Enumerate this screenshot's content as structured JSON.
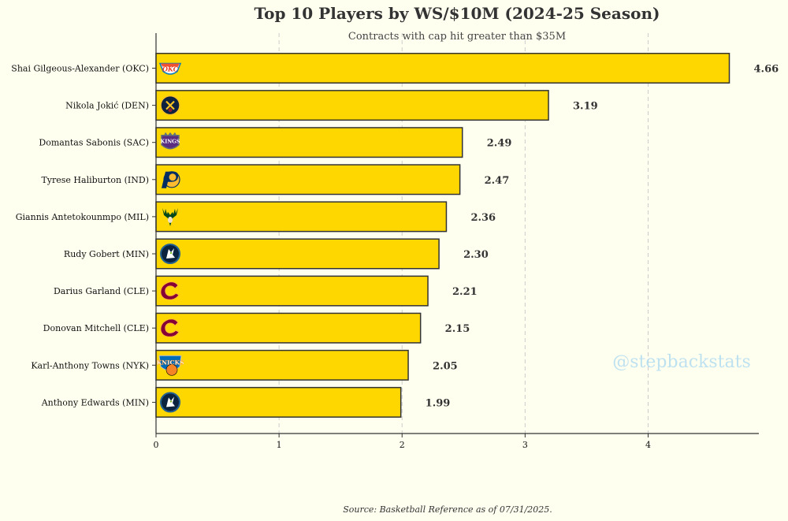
{
  "chart_data": {
    "type": "bar",
    "orientation": "horizontal",
    "title": "Top 10 Players by WS/$10M (2024-25 Season)",
    "subtitle": "Contracts with cap hit greater than $35M",
    "categories": [
      "Shai Gilgeous-Alexander (OKC)",
      "Nikola Jokić (DEN)",
      "Domantas Sabonis (SAC)",
      "Tyrese Haliburton (IND)",
      "Giannis Antetokounmpo (MIL)",
      "Rudy Gobert (MIN)",
      "Darius Garland (CLE)",
      "Donovan Mitchell (CLE)",
      "Karl-Anthony Towns (NYK)",
      "Anthony Edwards (MIN)"
    ],
    "values": [
      4.66,
      3.19,
      2.49,
      2.47,
      2.36,
      2.3,
      2.21,
      2.15,
      2.05,
      1.99
    ],
    "value_labels": [
      "4.66",
      "3.19",
      "2.49",
      "2.47",
      "2.36",
      "2.30",
      "2.21",
      "2.15",
      "2.05",
      "1.99"
    ],
    "teams": [
      "OKC",
      "DEN",
      "SAC",
      "IND",
      "MIL",
      "MIN",
      "CLE",
      "CLE",
      "NYK",
      "MIN"
    ],
    "xlim": [
      0,
      4.9
    ],
    "xticks": [
      0,
      1,
      2,
      3,
      4
    ],
    "xtick_labels": [
      "0",
      "1",
      "2",
      "3",
      "4"
    ],
    "xlabel": "",
    "ylabel": "",
    "grid": "vertical dashed",
    "watermark": "@stepbackstats",
    "source": "Source: Basketball Reference as of 07/31/2025."
  },
  "colors": {
    "background": "#fffff0",
    "bar_fill": "#ffd700",
    "bar_edge": "#333333",
    "grid": "#cccccc",
    "watermark": "#a9d8f0",
    "text": "#333333"
  },
  "team_logos": {
    "OKC": {
      "icon": "thunder-logo-icon",
      "text": "OKC",
      "fg": "#ef3b24",
      "bg": "#ffffff",
      "ring": "#007ac1"
    },
    "DEN": {
      "icon": "nuggets-logo-icon",
      "text": "",
      "fg": "#fec524",
      "bg": "#0e2240",
      "ring": "#fec524"
    },
    "SAC": {
      "icon": "kings-logo-icon",
      "text": "KINGS",
      "fg": "#ffffff",
      "bg": "#5a2d81",
      "ring": "#63727a"
    },
    "IND": {
      "icon": "pacers-logo-icon",
      "text": "P",
      "fg": "#002d62",
      "bg": "#fdbb30",
      "ring": "#002d62"
    },
    "MIL": {
      "icon": "bucks-logo-icon",
      "text": "",
      "fg": "#00471b",
      "bg": "#eee1c6",
      "ring": "#00471b"
    },
    "MIN": {
      "icon": "timberwolves-logo-icon",
      "text": "",
      "fg": "#ffffff",
      "bg": "#0c2340",
      "ring": "#236192"
    },
    "CLE": {
      "icon": "cavaliers-logo-icon",
      "text": "C",
      "fg": "#860038",
      "bg": "#fdbb30",
      "ring": "#041e42"
    },
    "NYK": {
      "icon": "knicks-logo-icon",
      "text": "KNICKS",
      "fg": "#ffffff",
      "bg": "#006bb6",
      "ring": "#f58426"
    }
  }
}
